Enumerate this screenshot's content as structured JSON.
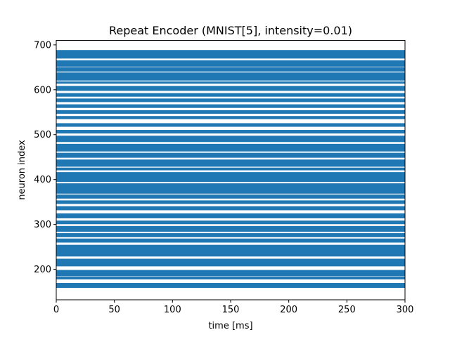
{
  "chart_data": {
    "type": "scatter",
    "title": "Repeat Encoder (MNIST[5], intensity=0.01)",
    "xlabel": "time [ms]",
    "ylabel": "neuron index",
    "xlim": [
      0,
      300
    ],
    "ylim": [
      132,
      710
    ],
    "xticks": [
      0,
      50,
      100,
      150,
      200,
      250,
      300
    ],
    "yticks": [
      200,
      300,
      400,
      500,
      600,
      700
    ],
    "grid": false,
    "marker_color": "#1f77b4",
    "time_range": [
      0,
      300
    ],
    "spike_bands": [
      [
        159,
        169
      ],
      [
        178,
        183
      ],
      [
        185,
        198
      ],
      [
        207,
        223
      ],
      [
        229,
        254
      ],
      [
        260,
        268
      ],
      [
        272,
        280
      ],
      [
        284,
        296
      ],
      [
        301,
        308
      ],
      [
        314,
        324
      ],
      [
        332,
        340
      ],
      [
        346,
        353
      ],
      [
        358,
        366
      ],
      [
        369,
        391
      ],
      [
        395,
        416
      ],
      [
        421,
        426
      ],
      [
        429,
        444
      ],
      [
        449,
        459
      ],
      [
        463,
        479
      ],
      [
        484,
        497
      ],
      [
        503,
        510
      ],
      [
        518,
        525
      ],
      [
        535,
        541
      ],
      [
        547,
        554
      ],
      [
        560,
        567
      ],
      [
        573,
        580
      ],
      [
        585,
        592
      ],
      [
        598,
        608
      ],
      [
        614,
        618
      ],
      [
        621,
        638
      ],
      [
        641,
        650
      ],
      [
        652,
        665
      ],
      [
        670,
        688
      ]
    ]
  }
}
